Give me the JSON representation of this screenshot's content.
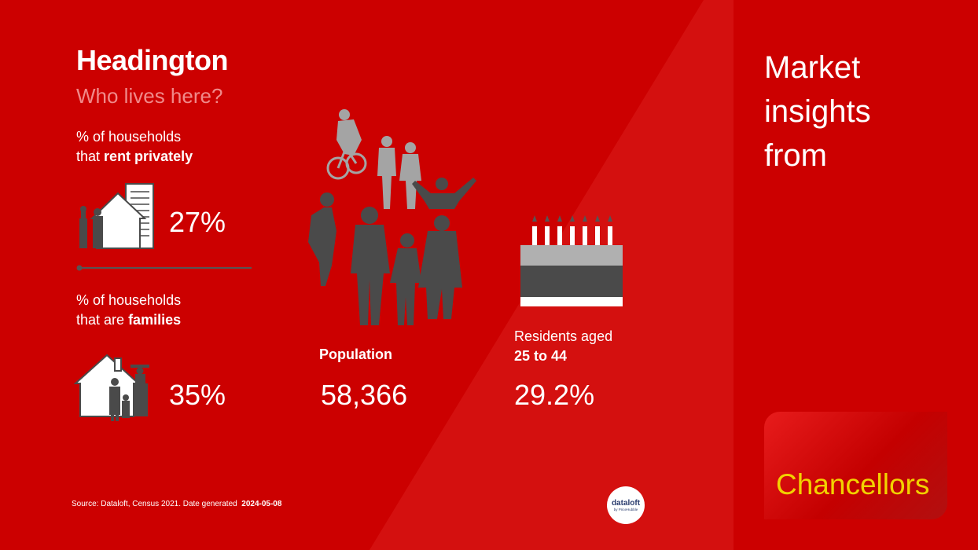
{
  "header": {
    "title": "Headington",
    "subtitle": "Who lives here?"
  },
  "rent": {
    "label_plain": "% of households",
    "label_prefix": "that",
    "label_bold": "rent privately",
    "value": "27%"
  },
  "families": {
    "label_plain": "% of households",
    "label_prefix": "that are",
    "label_bold": "families",
    "value": "35%"
  },
  "population": {
    "label": "Population",
    "value": "58,366"
  },
  "residents": {
    "label_plain": "Residents aged",
    "label_bold": "25 to 44",
    "value": "29.2%"
  },
  "sidebar": {
    "tagline": "Market insights from",
    "brand": "Chancellors"
  },
  "footer": {
    "source": "Source: Dataloft, Census 2021. Date generated",
    "date": "2024-05-08"
  },
  "badge": {
    "name": "dataloft",
    "sub": "by PriceHubble"
  },
  "colors": {
    "background": "#cc0000",
    "panel_light": "#d4100f",
    "brand_text": "#f2d200",
    "subtitle": "#f08a8a",
    "silhouette_dark": "#4a4a4a",
    "silhouette_light": "#9c9c9c"
  }
}
